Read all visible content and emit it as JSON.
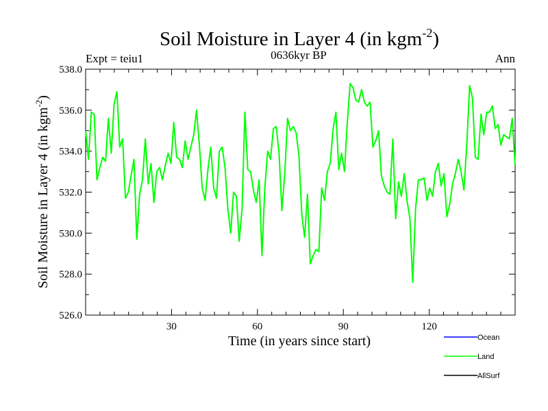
{
  "chart_data": {
    "type": "line",
    "title": "Soil Moisture in Layer 4 (in kgm",
    "title_sup": "-2",
    "title_close": ")",
    "subtitle_left": "Expt = teiu1",
    "subtitle_center": "0636kyr BP",
    "subtitle_right": "Ann",
    "xlabel": "Time (in years since start)",
    "ylabel": "Soil Moisture in Layer 4 (in kgm",
    "ylabel_sup": "-2",
    "ylabel_close": ")",
    "xlim": [
      0,
      150
    ],
    "ylim": [
      526,
      538
    ],
    "xticks": [
      30,
      60,
      90,
      120
    ],
    "xtick_labels": [
      "30",
      "60",
      "90",
      "120"
    ],
    "yticks": [
      526,
      528,
      530,
      532,
      534,
      536,
      538
    ],
    "ytick_labels": [
      "526.0",
      "528.0",
      "530.0",
      "532.0",
      "534.0",
      "536.0",
      "538.0"
    ],
    "series": [
      {
        "name": "Land",
        "color": "#00ff00",
        "values": [
          535.0,
          533.6,
          535.9,
          535.8,
          532.6,
          533.2,
          533.7,
          533.5,
          535.6,
          533.9,
          536.3,
          536.9,
          534.2,
          534.6,
          531.7,
          532.0,
          532.8,
          533.6,
          529.7,
          531.9,
          532.6,
          534.6,
          532.4,
          533.4,
          531.5,
          533.0,
          533.2,
          532.6,
          533.3,
          533.9,
          533.4,
          535.4,
          533.7,
          533.6,
          533.2,
          534.5,
          533.6,
          534.2,
          534.8,
          536.0,
          534.3,
          532.2,
          531.6,
          533.1,
          534.2,
          532.2,
          531.7,
          534.0,
          534.2,
          533.2,
          531.2,
          530.0,
          532.0,
          531.8,
          529.6,
          531.2,
          535.9,
          533.1,
          533.0,
          532.1,
          531.5,
          532.6,
          528.9,
          532.2,
          534.0,
          533.6,
          535.1,
          535.2,
          533.9,
          531.1,
          532.9,
          535.6,
          535.0,
          535.2,
          534.9,
          533.8,
          530.9,
          529.8,
          531.9,
          528.5,
          528.9,
          529.2,
          529.1,
          532.2,
          531.6,
          533.0,
          533.4,
          535.1,
          535.9,
          533.1,
          533.9,
          533.0,
          535.4,
          537.3,
          537.1,
          536.5,
          536.4,
          537.0,
          536.4,
          536.2,
          536.4,
          534.2,
          534.5,
          535.0,
          532.8,
          532.3,
          532.0,
          531.9,
          534.6,
          530.7,
          532.5,
          531.8,
          532.9,
          531.6,
          530.7,
          527.6,
          531.2,
          532.6,
          532.6,
          532.7,
          531.6,
          532.2,
          531.8,
          533.0,
          533.4,
          532.3,
          532.9,
          530.8,
          531.4,
          532.4,
          532.9,
          533.6,
          533.0,
          532.1,
          534.3,
          537.2,
          536.6,
          533.7,
          533.6,
          535.8,
          534.8,
          535.9,
          535.9,
          536.2,
          535.1,
          535.3,
          534.3,
          534.8,
          534.7,
          534.6,
          535.6,
          533.3
        ]
      },
      {
        "name": "Ocean",
        "color": "#0000ff",
        "values": []
      },
      {
        "name": "AllSurf",
        "color": "#000000",
        "values": []
      }
    ],
    "legend": {
      "placement": "bottom-right",
      "entries": [
        "Ocean",
        "Land",
        "AllSurf"
      ]
    }
  }
}
